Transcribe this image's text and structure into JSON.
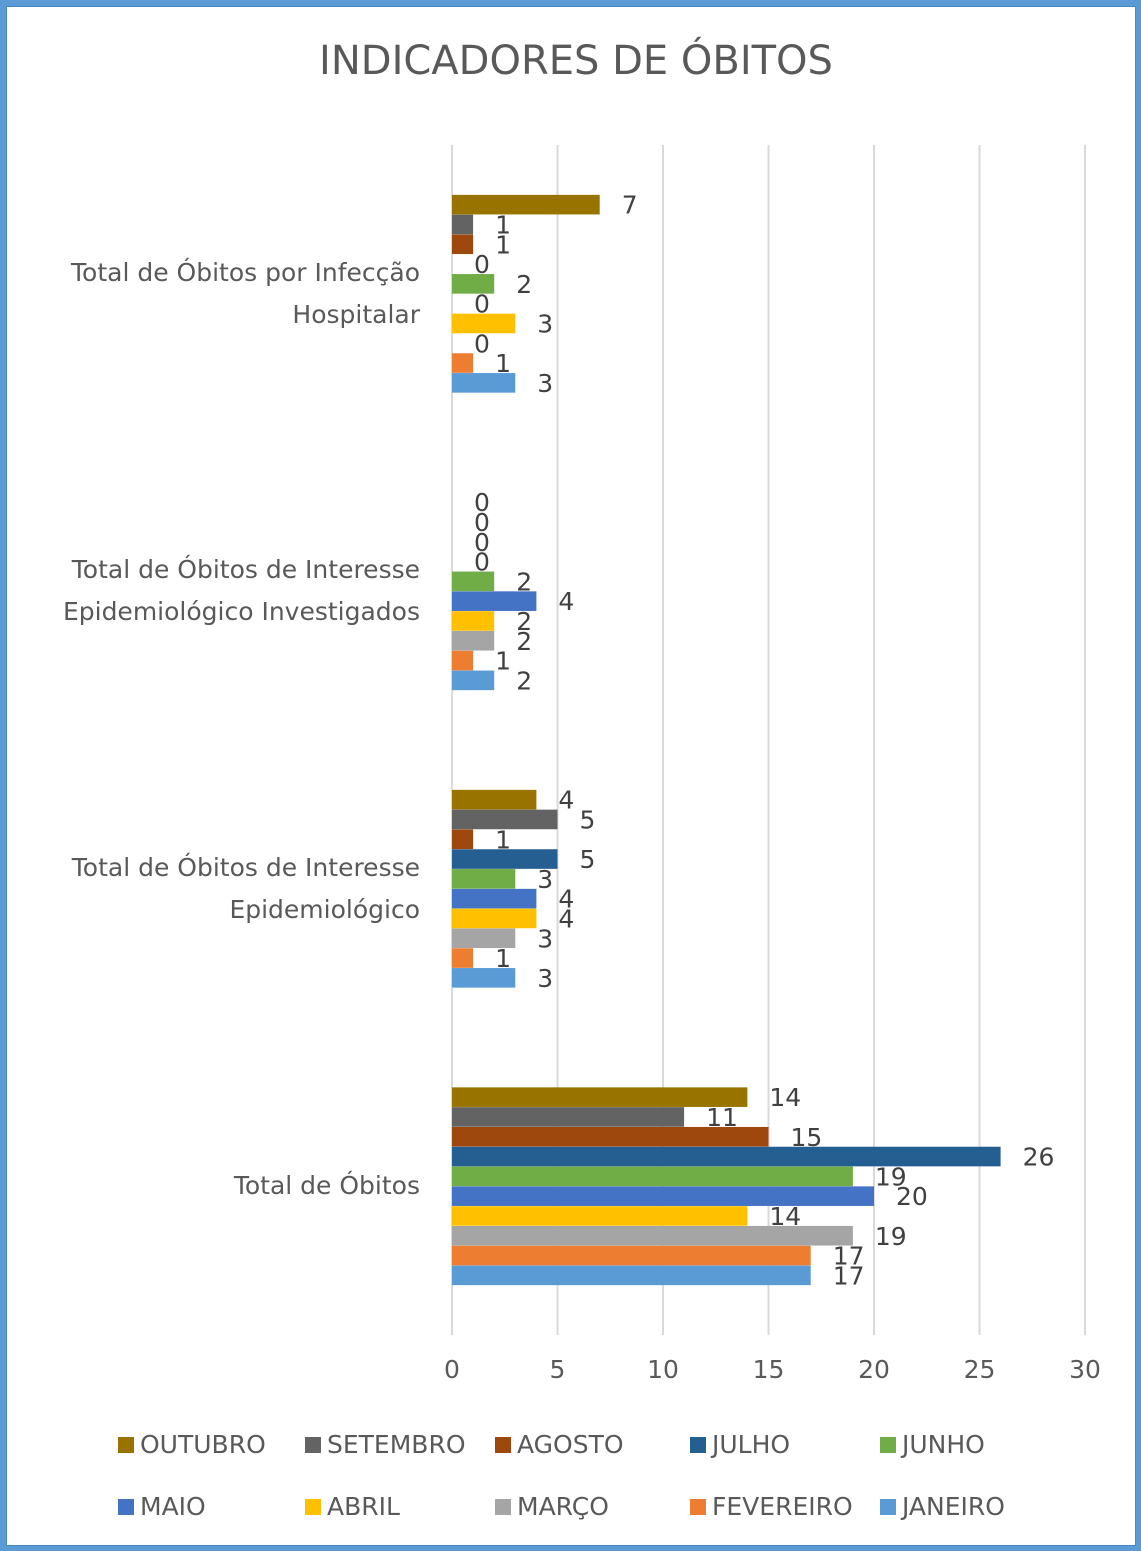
{
  "chart_data": {
    "type": "bar",
    "orientation": "horizontal",
    "title": "INDICADORES DE ÓBITOS",
    "categories": [
      "Total de Óbitos",
      "Total de Óbitos de Interesse Epidemiológico",
      "Total de Óbitos de Interesse Epidemiológico Investigados",
      "Total de Óbitos por Infecção Hospitalar"
    ],
    "category_lines": [
      [
        "Total de Óbitos"
      ],
      [
        "Total de Óbitos de Interesse",
        "Epidemiológico"
      ],
      [
        "Total de Óbitos de Interesse",
        "Epidemiológico Investigados"
      ],
      [
        "Total de Óbitos por Infecção",
        "Hospitalar"
      ]
    ],
    "xlim": [
      0,
      30
    ],
    "x_ticks": [
      0,
      5,
      10,
      15,
      20,
      25,
      30
    ],
    "grid": true,
    "legend_position": "bottom",
    "series": [
      {
        "name": "JANEIRO",
        "color": "#5b9bd5",
        "values": [
          17,
          3,
          2,
          3
        ]
      },
      {
        "name": "FEVEREIRO",
        "color": "#ed7d31",
        "values": [
          17,
          1,
          1,
          1
        ]
      },
      {
        "name": "MARÇO",
        "color": "#a5a5a5",
        "values": [
          19,
          3,
          2,
          0
        ]
      },
      {
        "name": "ABRIL",
        "color": "#ffc000",
        "values": [
          14,
          4,
          2,
          3
        ]
      },
      {
        "name": "MAIO",
        "color": "#4472c4",
        "values": [
          20,
          4,
          4,
          0
        ]
      },
      {
        "name": "JUNHO",
        "color": "#70ad47",
        "values": [
          19,
          3,
          2,
          2
        ]
      },
      {
        "name": "JULHO",
        "color": "#255e91",
        "values": [
          26,
          5,
          0,
          0
        ]
      },
      {
        "name": "AGOSTO",
        "color": "#9e480e",
        "values": [
          15,
          1,
          0,
          1
        ]
      },
      {
        "name": "SETEMBRO",
        "color": "#636363",
        "values": [
          11,
          5,
          0,
          1
        ]
      },
      {
        "name": "OUTUBRO",
        "color": "#997300",
        "values": [
          14,
          4,
          0,
          7
        ]
      }
    ]
  }
}
